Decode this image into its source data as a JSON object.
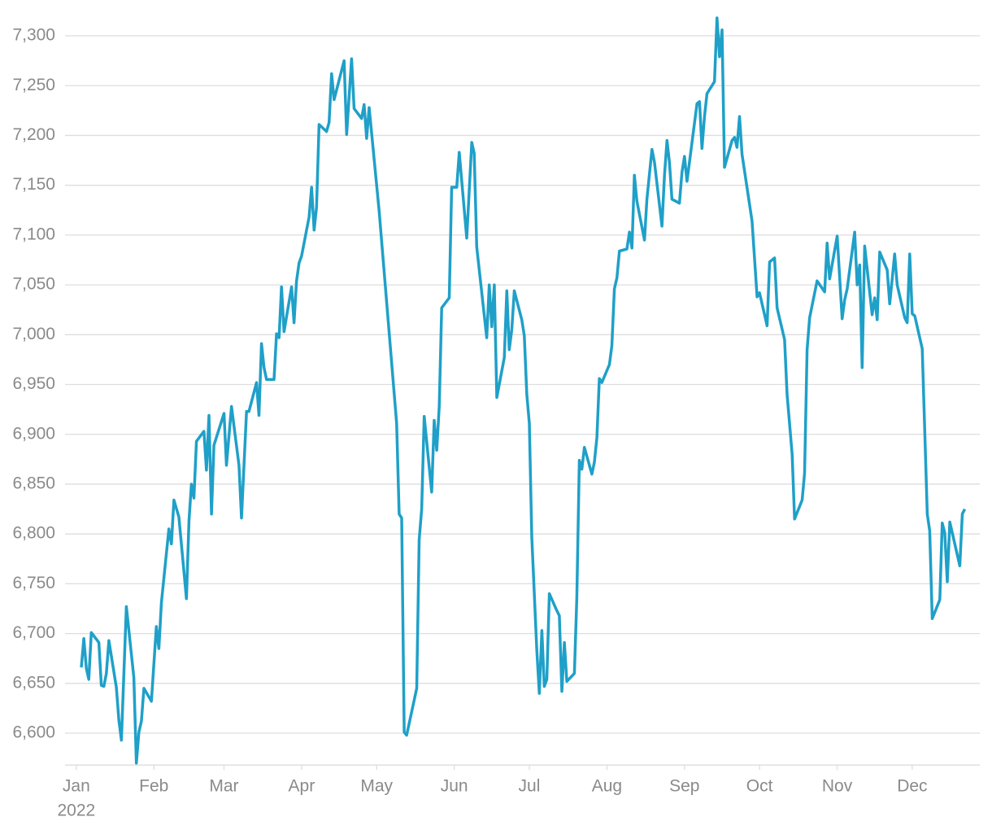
{
  "chart_data": {
    "type": "line",
    "xlim": [
      -4.5,
      361
    ],
    "ylim": [
      6568,
      7330
    ],
    "xticks": [
      {
        "value": 0,
        "label": "Jan"
      },
      {
        "value": 31,
        "label": "Feb"
      },
      {
        "value": 59,
        "label": "Mar"
      },
      {
        "value": 90,
        "label": "Apr"
      },
      {
        "value": 120,
        "label": "May"
      },
      {
        "value": 151,
        "label": "Jun"
      },
      {
        "value": 181,
        "label": "Jul"
      },
      {
        "value": 212,
        "label": "Aug"
      },
      {
        "value": 243,
        "label": "Sep"
      },
      {
        "value": 273,
        "label": "Oct"
      },
      {
        "value": 304,
        "label": "Nov"
      },
      {
        "value": 334,
        "label": "Dec"
      }
    ],
    "year_label": "2022",
    "yticks": [
      {
        "value": 6600,
        "label": "6,600"
      },
      {
        "value": 6650,
        "label": "6,650"
      },
      {
        "value": 6700,
        "label": "6,700"
      },
      {
        "value": 6750,
        "label": "6,750"
      },
      {
        "value": 6800,
        "label": "6,800"
      },
      {
        "value": 6850,
        "label": "6,850"
      },
      {
        "value": 6900,
        "label": "6,900"
      },
      {
        "value": 6950,
        "label": "6,950"
      },
      {
        "value": 7000,
        "label": "7,000"
      },
      {
        "value": 7050,
        "label": "7,050"
      },
      {
        "value": 7100,
        "label": "7,100"
      },
      {
        "value": 7150,
        "label": "7,150"
      },
      {
        "value": 7200,
        "label": "7,200"
      },
      {
        "value": 7250,
        "label": "7,250"
      },
      {
        "value": 7300,
        "label": "7,300"
      }
    ],
    "grid": true,
    "color": "#1fa0c8",
    "x": [
      2,
      3,
      4,
      5,
      6,
      9,
      10,
      11,
      12,
      13,
      16,
      17,
      18,
      20,
      23,
      24,
      25,
      26,
      27,
      30,
      32,
      33,
      34,
      37,
      38,
      39,
      41,
      44,
      45,
      46,
      47,
      48,
      51,
      52,
      53,
      54,
      55,
      59,
      60,
      62,
      65,
      66,
      68,
      69,
      72,
      73,
      74,
      75,
      76,
      79,
      80,
      81,
      82,
      83,
      86,
      87,
      88,
      89,
      90,
      93,
      94,
      95,
      96,
      97,
      100,
      101,
      102,
      103,
      107,
      108,
      110,
      111,
      114,
      115,
      116,
      117,
      121,
      128,
      129,
      130,
      131,
      132,
      136,
      137,
      138,
      139,
      142,
      143,
      144,
      145,
      146,
      149,
      150,
      152,
      153,
      156,
      158,
      159,
      160,
      164,
      165,
      166,
      167,
      168,
      171,
      172,
      173,
      174,
      175,
      178,
      179,
      180,
      181,
      182,
      184,
      185,
      186,
      187,
      188,
      189,
      192,
      193,
      194,
      195,
      196,
      199,
      200,
      201,
      202,
      203,
      206,
      207,
      208,
      209,
      210,
      213,
      214,
      215,
      216,
      217,
      220,
      221,
      222,
      223,
      224,
      227,
      228,
      230,
      231,
      234,
      235,
      236,
      237,
      238,
      241,
      242,
      243,
      244,
      248,
      249,
      250,
      251,
      252,
      255,
      256,
      257,
      258,
      259,
      262,
      263,
      264,
      265,
      266,
      270,
      272,
      273,
      276,
      277,
      279,
      280,
      283,
      284,
      286,
      287,
      290,
      291,
      292,
      293,
      296,
      299,
      300,
      301,
      304,
      306,
      307,
      308,
      311,
      312,
      313,
      314,
      315,
      318,
      319,
      320,
      321,
      324,
      325,
      327,
      328,
      331,
      332,
      333,
      334,
      335,
      338,
      340,
      341,
      342,
      345,
      346,
      347,
      348,
      349,
      353,
      354,
      355
    ],
    "values": [
      6666,
      6695,
      6665,
      6654,
      6701,
      6691,
      6648,
      6647,
      6660,
      6693,
      6646,
      6613,
      6593,
      6727,
      6656,
      6570,
      6601,
      6612,
      6645,
      6632,
      6707,
      6685,
      6731,
      6805,
      6790,
      6834,
      6817,
      6735,
      6813,
      6850,
      6836,
      6893,
      6903,
      6864,
      6919,
      6820,
      6889,
      6921,
      6869,
      6928,
      6869,
      6816,
      6923,
      6923,
      6952,
      6919,
      6991,
      6967,
      6955,
      6955,
      7001,
      6997,
      7048,
      7003,
      7048,
      7012,
      7054,
      7072,
      7079,
      7118,
      7148,
      7105,
      7128,
      7211,
      7204,
      7213,
      7262,
      7236,
      7275,
      7201,
      7277,
      7227,
      7217,
      7231,
      7197,
      7228,
      7124,
      6911,
      6820,
      6816,
      6601,
      6598,
      6645,
      6794,
      6825,
      6918,
      6842,
      6914,
      6884,
      6928,
      7027,
      7037,
      7148,
      7148,
      7183,
      7097,
      7193,
      7182,
      7088,
      6997,
      7050,
      7008,
      7050,
      6937,
      6977,
      7044,
      6985,
      7005,
      7044,
      7015,
      6999,
      6940,
      6911,
      6797,
      6683,
      6640,
      6703,
      6647,
      6654,
      6740,
      6723,
      6718,
      6642,
      6691,
      6652,
      6660,
      6736,
      6874,
      6865,
      6887,
      6860,
      6872,
      6897,
      6956,
      6952,
      6970,
      6989,
      7046,
      7057,
      7084,
      7086,
      7103,
      7087,
      7160,
      7134,
      7095,
      7136,
      7186,
      7173,
      7109,
      7160,
      7195,
      7173,
      7136,
      7132,
      7163,
      7179,
      7154,
      7232,
      7234,
      7187,
      7219,
      7242,
      7254,
      7318,
      7279,
      7306,
      7168,
      7195,
      7198,
      7188,
      7219,
      7181,
      7114,
      7038,
      7042,
      7009,
      7073,
      7077,
      7027,
      6995,
      6940,
      6880,
      6815,
      6834,
      6861,
      6985,
      7017,
      7054,
      7043,
      7092,
      7056,
      7099,
      7016,
      7035,
      7046,
      7103,
      7050,
      7070,
      6967,
      7089,
      7020,
      7037,
      7015,
      7083,
      7065,
      7031,
      7081,
      7050,
      7017,
      7012,
      7081,
      7021,
      7019,
      6986,
      6820,
      6803,
      6715,
      6734,
      6811,
      6801,
      6752,
      6812,
      6768,
      6820,
      6825
    ]
  }
}
